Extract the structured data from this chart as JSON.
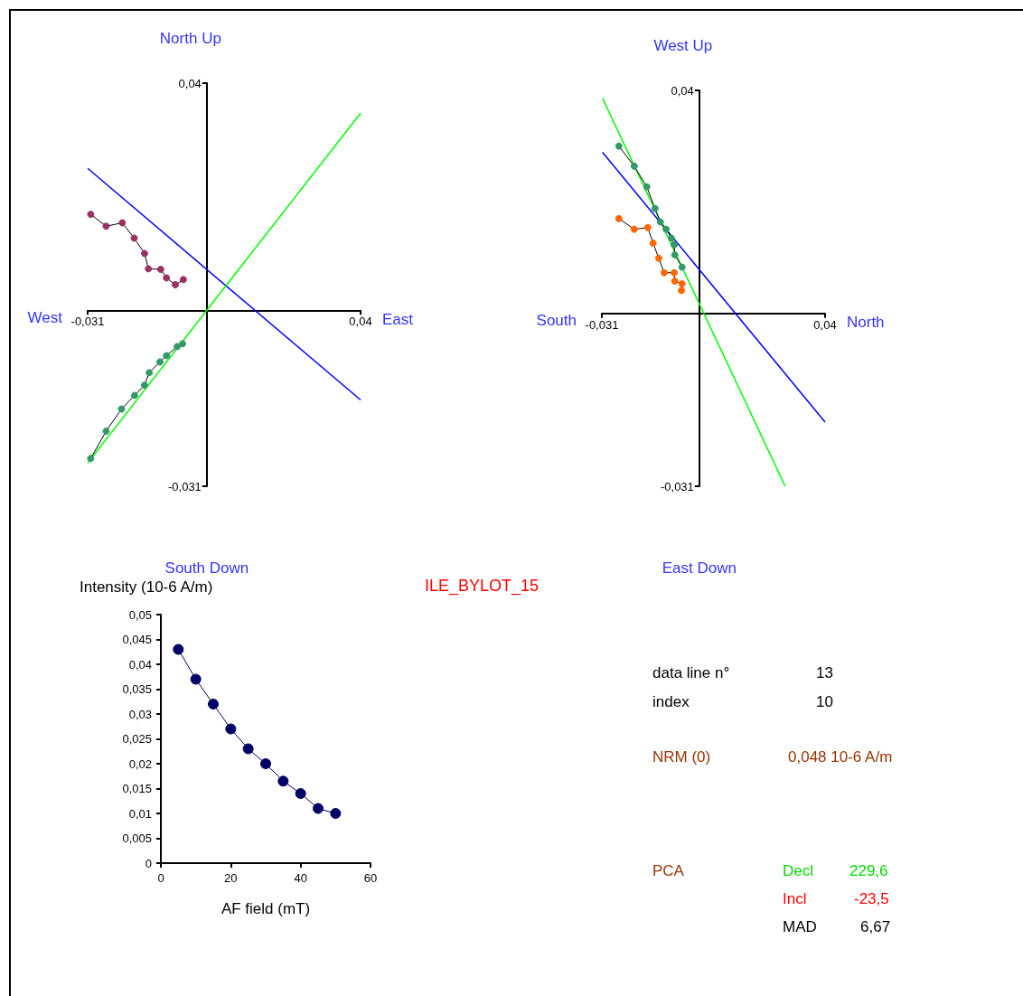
{
  "chart_data": [
    {
      "type": "line",
      "marker": "circle",
      "xlim": [
        -0.031,
        0.04
      ],
      "ylim": [
        -0.031,
        0.04
      ],
      "xticks": [
        {
          "value": -0.031,
          "label": "-0,031"
        },
        {
          "value": 0.04,
          "label": "0,04"
        }
      ],
      "yticks": [
        {
          "value": -0.031,
          "label": "-0,031"
        },
        {
          "value": 0.04,
          "label": "0,04"
        }
      ],
      "annotations": [
        "West",
        "East",
        "North Up",
        "South Down"
      ],
      "series": [
        {
          "type": "line",
          "marker": "none",
          "color": "#0000ff",
          "x": [
            -0.031,
            0.04
          ],
          "values": [
            0.025,
            -0.0158
          ]
        },
        {
          "type": "line",
          "marker": "none",
          "color": "#00ff00",
          "x": [
            -0.031,
            0.04
          ],
          "values": [
            -0.0269,
            0.0347
          ]
        },
        {
          "color": "#339966",
          "x": [
            -0.0302,
            -0.0262,
            -0.0222,
            -0.0188,
            -0.0162,
            -0.015,
            -0.0122,
            -0.0105,
            -0.0077,
            -0.0063
          ],
          "values": [
            -0.0261,
            -0.0213,
            -0.0174,
            -0.015,
            -0.0132,
            -0.011,
            -0.0091,
            -0.008,
            -0.0064,
            -0.0059
          ]
        },
        {
          "color": "#993366",
          "x": [
            -0.0302,
            -0.0262,
            -0.022,
            -0.0189,
            -0.0162,
            -0.0152,
            -0.012,
            -0.0105,
            -0.0082,
            -0.0061
          ],
          "values": [
            0.0169,
            0.0148,
            0.0154,
            0.0127,
            0.01,
            0.0073,
            0.0072,
            0.0057,
            0.0045,
            0.0054
          ]
        }
      ]
    },
    {
      "type": "line",
      "marker": "circle",
      "xlim": [
        -0.031,
        0.04
      ],
      "ylim": [
        -0.031,
        0.04
      ],
      "xticks": [
        {
          "value": -0.031,
          "label": "-0,031"
        },
        {
          "value": 0.04,
          "label": "0,04"
        }
      ],
      "yticks": [
        {
          "value": -0.031,
          "label": "-0,031"
        },
        {
          "value": 0.04,
          "label": "0,04"
        }
      ],
      "annotations": [
        "South",
        "North",
        "West Up",
        "East Down"
      ],
      "series": [
        {
          "type": "line",
          "marker": "none",
          "color": "#0000ff",
          "x": [
            -0.0308,
            0.04
          ],
          "values": [
            0.0289,
            -0.0195
          ]
        },
        {
          "type": "line",
          "marker": "none",
          "color": "#00ff00",
          "x": [
            -0.0308,
            0.0273
          ],
          "values": [
            0.0386,
            -0.031
          ]
        },
        {
          "color": "#339966",
          "x": [
            -0.0256,
            -0.0207,
            -0.0167,
            -0.0141,
            -0.0124,
            -0.0106,
            -0.0089,
            -0.008,
            -0.0078,
            -0.0055
          ],
          "values": [
            0.03,
            0.0264,
            0.0227,
            0.0188,
            0.0164,
            0.0151,
            0.0135,
            0.0123,
            0.0105,
            0.0083
          ]
        },
        {
          "color": "#ff6600",
          "x": [
            -0.0256,
            -0.0207,
            -0.0164,
            -0.0147,
            -0.0129,
            -0.0112,
            -0.008,
            -0.0078,
            -0.0055,
            -0.0057
          ],
          "values": [
            0.017,
            0.0151,
            0.0154,
            0.0126,
            0.0099,
            0.0073,
            0.0073,
            0.0058,
            0.0053,
            0.0041
          ]
        }
      ]
    },
    {
      "type": "line",
      "marker": "circle",
      "xlabel": "AF field (mT)",
      "ylabel": "Intensity (10-6 A/m)",
      "xlim": [
        0,
        60
      ],
      "xticks": [
        0,
        20,
        40,
        60
      ],
      "ylim": [
        0,
        0.05
      ],
      "yticks": [
        0,
        {
          "value": 0.005,
          "label": "0,005"
        },
        {
          "value": 0.01,
          "label": "0,01"
        },
        {
          "value": 0.015,
          "label": "0,015"
        },
        {
          "value": 0.02,
          "label": "0,02"
        },
        {
          "value": 0.025,
          "label": "0,025"
        },
        {
          "value": 0.03,
          "label": "0,03"
        },
        {
          "value": 0.035,
          "label": "0,035"
        },
        {
          "value": 0.04,
          "label": "0,04"
        },
        {
          "value": 0.045,
          "label": "0,045"
        },
        {
          "value": 0.05,
          "label": "0,05"
        }
      ],
      "series": [
        {
          "color": "#000066",
          "x": [
            5,
            10,
            15,
            20,
            25,
            30,
            35,
            40,
            45,
            50
          ],
          "values": [
            0.043,
            0.037,
            0.032,
            0.027,
            0.023,
            0.02,
            0.0165,
            0.014,
            0.011,
            0.01
          ]
        }
      ]
    },
    {
      "type": "other",
      "title": "ILE_BYLOT_15",
      "annotations": [
        "data line n°",
        "13",
        "index",
        "10",
        "NRM (0)",
        "0,048 10-6 A/m",
        "PCA",
        "Decl",
        "229,6",
        "Incl",
        "-23,5",
        "MAD",
        "6,67"
      ]
    }
  ]
}
